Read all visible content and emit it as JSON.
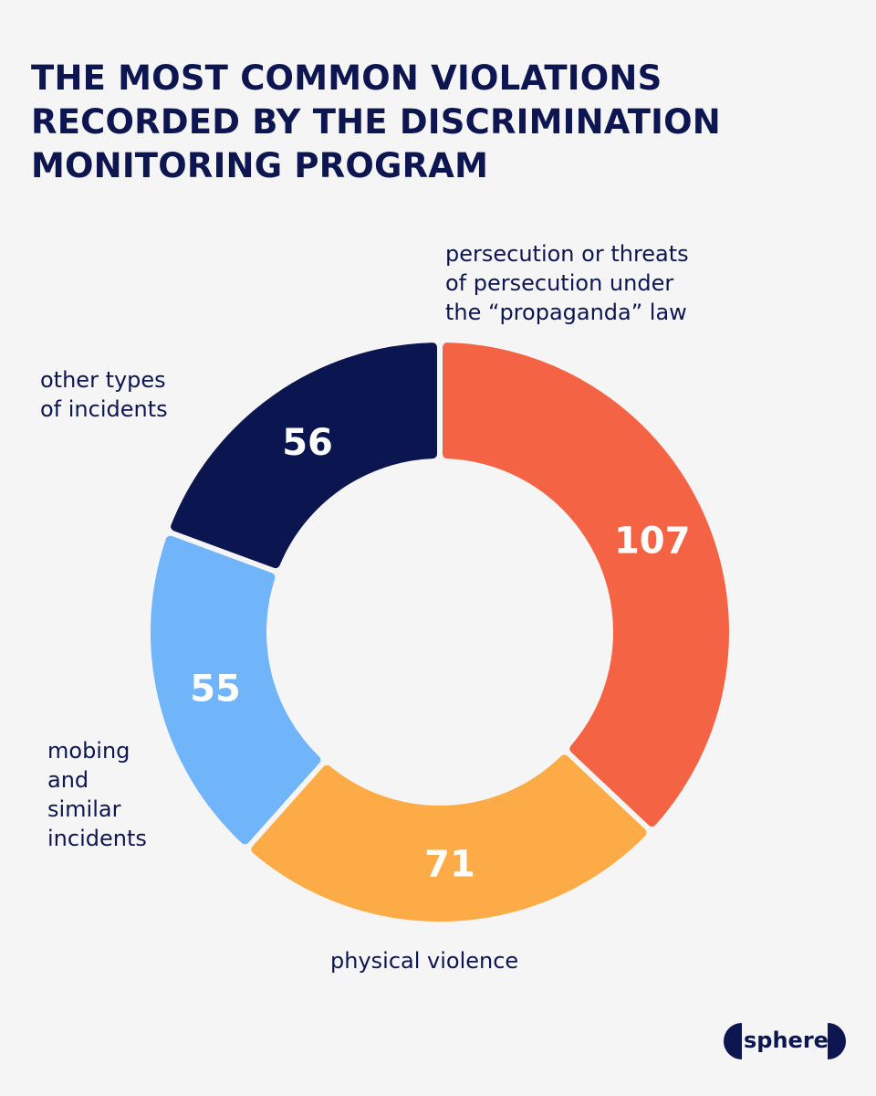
{
  "title_lines": [
    "THE MOST COMMON VIOLATIONS",
    "RECORDED BY THE DISCRIMINATION",
    "MONITORING PROGRAM"
  ],
  "chart_data": {
    "type": "pie",
    "variant": "donut",
    "categories": [
      "persecution or threats of persecution under the “propaganda” law",
      "physical violence",
      "mobing and similar incidents",
      "other types of incidents"
    ],
    "values": [
      107,
      71,
      55,
      56
    ],
    "value_labels": [
      "107",
      "71",
      "55",
      "56"
    ],
    "label_lines": [
      [
        "persecution or threats",
        "of persecution under",
        "the “propaganda” law"
      ],
      [
        "physical violence"
      ],
      [
        "mobing",
        "and",
        "similar",
        "incidents"
      ],
      [
        "other types",
        "of incidents"
      ]
    ],
    "colors": [
      "#f46444",
      "#fdab46",
      "#70b5f9",
      "#0b1650"
    ],
    "value_label_color": "#ffffff",
    "start_angle": "12 o'clock",
    "direction": "clockwise",
    "legend": "none"
  },
  "logo": {
    "text": "sphere"
  }
}
